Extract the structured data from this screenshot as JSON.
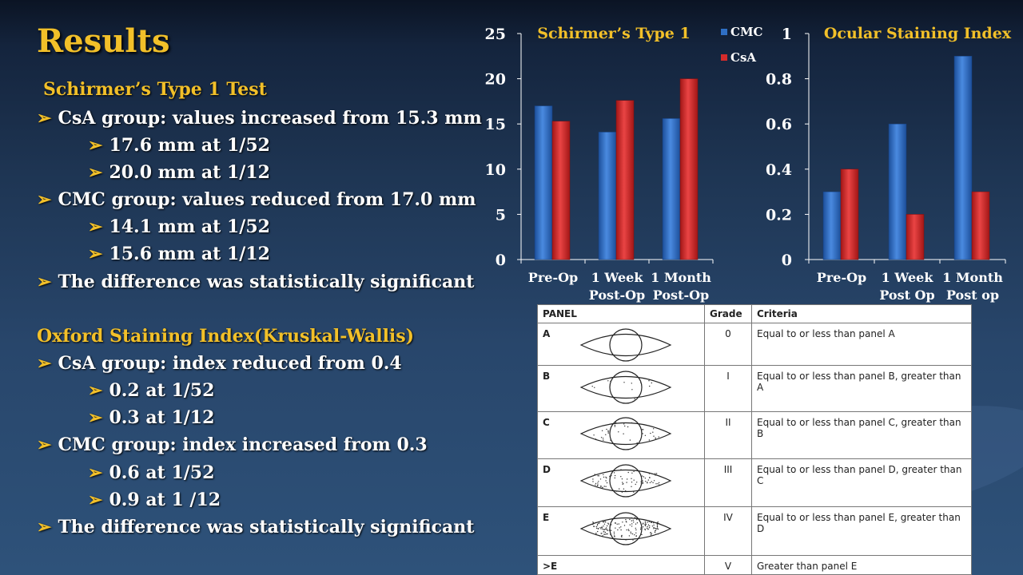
{
  "slide": {
    "title": "Results",
    "left": {
      "schirmer_heading": "Schirmer’s Type 1 Test",
      "schirmer_lines": [
        "CsA group: values increased from 15.3 mm",
        "17.6 mm at 1/52",
        "20.0 mm at 1/12",
        "CMC group: values reduced from 17.0 mm",
        "14.1 mm at 1/52",
        "15.6 mm at 1/12",
        "The difference was statistically significant"
      ],
      "oxford_heading": "Oxford Staining Index(Kruskal-Wallis)",
      "oxford_lines": [
        "CsA group: index reduced from 0.4",
        "0.2 at 1/52",
        "0.3 at 1/12",
        "CMC group: index increased from 0.3",
        "0.6 at 1/52",
        "0.9 at 1 /12",
        "The difference was statistically significant"
      ],
      "bullet_glyph": "➢"
    },
    "table": {
      "headers": [
        "PANEL",
        "Grade",
        "Criteria"
      ],
      "rows": [
        {
          "panel": "A",
          "grade": "0",
          "criteria": "Equal to or less than panel A"
        },
        {
          "panel": "B",
          "grade": "I",
          "criteria": "Equal to or less than panel B, greater than A"
        },
        {
          "panel": "C",
          "grade": "II",
          "criteria": "Equal to or less than panel C, greater than B"
        },
        {
          "panel": "D",
          "grade": "III",
          "criteria": "Equal to or less than panel D, greater than C"
        },
        {
          "panel": "E",
          "grade": "IV",
          "criteria": "Equal to or less than panel E, greater than D"
        },
        {
          "panel": ">E",
          "grade": "V",
          "criteria": "Greater than panel E"
        }
      ]
    }
  },
  "colors": {
    "title": "#f2c029",
    "text": "#ffffff",
    "cmc": "#2f6fc4",
    "csa": "#d42b2b"
  },
  "chart_data": [
    {
      "type": "bar",
      "title": "Schirmer’s Type 1",
      "categories": [
        "Pre-Op",
        "1 Week Post-Op",
        "1 Month Post-Op"
      ],
      "series": [
        {
          "name": "CMC",
          "values": [
            17.0,
            14.1,
            15.6
          ]
        },
        {
          "name": "CsA",
          "values": [
            15.3,
            17.6,
            20.0
          ]
        }
      ],
      "ylim": [
        0,
        25
      ],
      "yticks": [
        "0",
        "5",
        "10",
        "15",
        "20",
        "25"
      ],
      "legend": "top-right",
      "grid": false
    },
    {
      "type": "bar",
      "title": "Ocular Staining Index",
      "categories": [
        "Pre-Op",
        "1 Week Post Op",
        "1 Month Post op"
      ],
      "series": [
        {
          "name": "CMC",
          "values": [
            0.3,
            0.6,
            0.9
          ]
        },
        {
          "name": "CsA",
          "values": [
            0.4,
            0.2,
            0.3
          ]
        }
      ],
      "ylim": [
        0,
        1
      ],
      "yticks": [
        "0",
        "0.2",
        "0.4",
        "0.6",
        "0.8",
        "1"
      ],
      "grid": false
    }
  ]
}
